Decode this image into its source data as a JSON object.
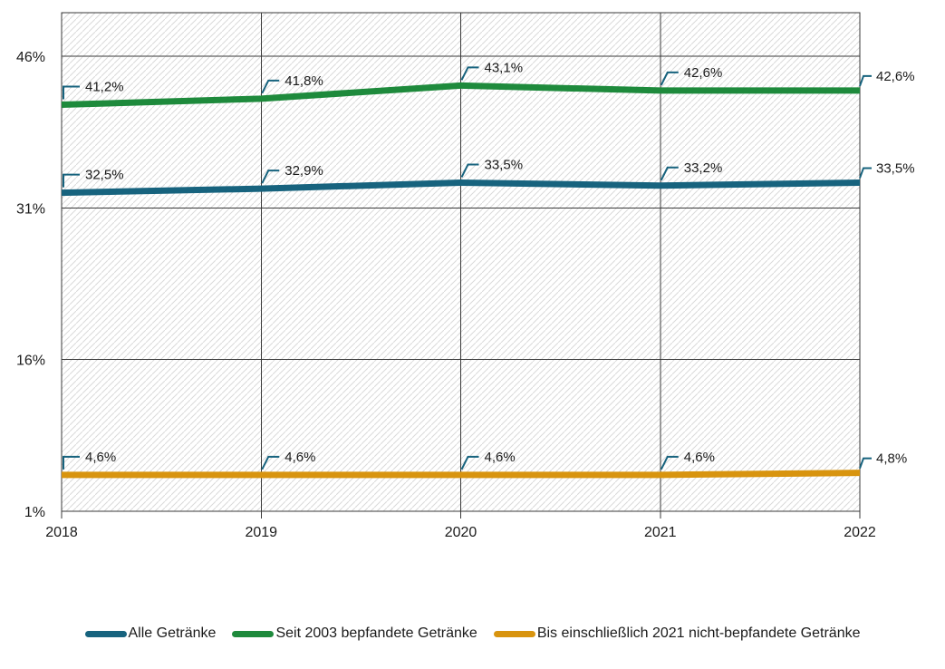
{
  "chart_data": {
    "type": "line",
    "title": "",
    "xlabel": "",
    "ylabel": "",
    "x_labels": [
      "2018",
      "2019",
      "2020",
      "2021",
      "2022"
    ],
    "y_ticks": [
      {
        "value": 46,
        "label": "46%"
      },
      {
        "value": 31,
        "label": "31%"
      },
      {
        "value": 16,
        "label": "16%"
      },
      {
        "value": 1,
        "label": "1%"
      }
    ],
    "ylim": [
      1,
      50.3
    ],
    "grid": true,
    "background_hatch": true,
    "legend_position": "bottom",
    "series": [
      {
        "name": "Alle Getränke",
        "color": "#17637e",
        "values": [
          32.5,
          32.9,
          33.5,
          33.2,
          33.5
        ],
        "labels": [
          "32,5%",
          "32,9%",
          "33,5%",
          "33,2%",
          "33,5%"
        ]
      },
      {
        "name": "Seit 2003 bepfandete Getränke",
        "color": "#1e8a3c",
        "values": [
          41.2,
          41.8,
          43.1,
          42.6,
          42.6
        ],
        "labels": [
          "41,2%",
          "41,8%",
          "43,1%",
          "42,6%",
          "42,6%"
        ]
      },
      {
        "name": "Bis einschließlich 2021 nicht-bepfandete Getränke",
        "color": "#d8940f",
        "values": [
          4.6,
          4.6,
          4.6,
          4.6,
          4.8
        ],
        "labels": [
          "4,6%",
          "4,6%",
          "4,6%",
          "4,6%",
          "4,8%"
        ]
      }
    ],
    "callout_color": "#17637e",
    "text_color": "#1a1a1a",
    "gridline_color": "#3a3a3a",
    "hatch_color": "#d9d9d9"
  }
}
